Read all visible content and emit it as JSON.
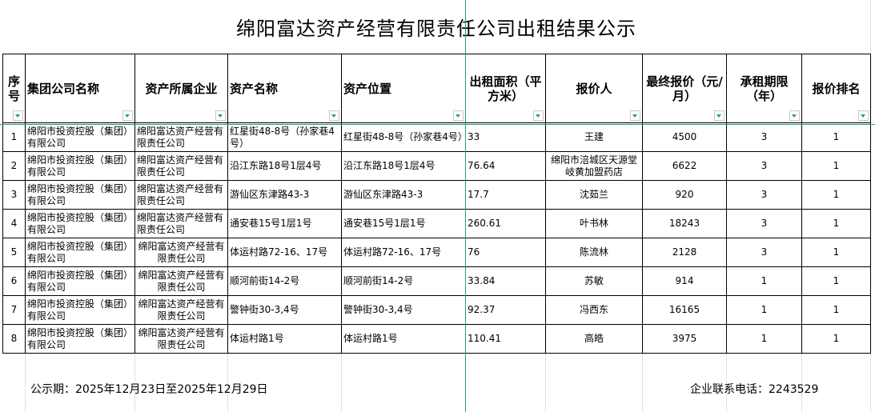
{
  "title": "绵阳富达资产经营有限责任公司出租结果公示",
  "columns": [
    "序号",
    "集团公司名称",
    "资产所属企业",
    "资产名称",
    "资产位置",
    "出租面积（平方米）",
    "报价人",
    "最终报价（元/月）",
    "承租期限（年）",
    "报价排名"
  ],
  "rows": [
    {
      "no": "1",
      "group": "绵阳市投资控股（集团）有限公司",
      "owner": "绵阳富达资产经营有限责任公司",
      "asset": "红星街48-8号（孙家巷4号）",
      "location": "红星街48-8号（孙家巷4号）",
      "area": "33",
      "bidder": "王建",
      "price": "4500",
      "term": "3",
      "rank": "1"
    },
    {
      "no": "2",
      "group": "绵阳市投资控股（集团）有限公司",
      "owner": "绵阳富达资产经营有限责任公司",
      "asset": "沿江东路18号1层4号",
      "location": "沿江东路18号1层4号",
      "area": "76.64",
      "bidder": "绵阳市涪城区天源堂岐黄加盟药店",
      "price": "6622",
      "term": "3",
      "rank": "1"
    },
    {
      "no": "3",
      "group": "绵阳市投资控股（集团）有限公司",
      "owner": "绵阳富达资产经营有限责任公司",
      "asset": "游仙区东津路43-3",
      "location": "游仙区东津路43-3",
      "area": "17.7",
      "bidder": "沈茹兰",
      "price": "920",
      "term": "3",
      "rank": "1"
    },
    {
      "no": "4",
      "group": "绵阳市投资控股（集团）有限公司",
      "owner": "绵阳富达资产经营有限责任公司",
      "asset": "通安巷15号1层1号",
      "location": "通安巷15号1层1号",
      "area": "260.61",
      "bidder": "叶书林",
      "price": "18243",
      "term": "3",
      "rank": "1"
    },
    {
      "no": "5",
      "group": "绵阳市投资控股（集团）有限公司",
      "owner": "绵阳富达资产经营有限责任公司",
      "asset": "体运村路72-16、17号",
      "location": "体运村路72-16、17号",
      "area": "76",
      "bidder": "陈流林",
      "price": "2128",
      "term": "3",
      "rank": "1"
    },
    {
      "no": "6",
      "group": "绵阳市投资控股（集团）有限公司",
      "owner": "绵阳富达资产经营有限责任公司",
      "asset": "顺河前街14-2号",
      "location": "顺河前街14-2号",
      "area": "33.84",
      "bidder": "苏敏",
      "price": "914",
      "term": "1",
      "rank": "1"
    },
    {
      "no": "7",
      "group": "绵阳市投资控股（集团）有限公司",
      "owner": "绵阳富达资产经营有限责任公司",
      "asset": "警钟街30-3,4号",
      "location": "警钟街30-3,4号",
      "area": "92.37",
      "bidder": "冯西东",
      "price": "16165",
      "term": "1",
      "rank": "1"
    },
    {
      "no": "8",
      "group": "绵阳市投资控股（集团）有限公司",
      "owner": "绵阳富达资产经营有限责任公司",
      "asset": "体运村路1号",
      "location": "体运村路1号",
      "area": "110.41",
      "bidder": "高皓",
      "price": "3975",
      "term": "1",
      "rank": "1"
    }
  ],
  "footer": {
    "period": "公示期：2025年12月23日至2025年12月29日",
    "contact": "企业联系电话：2243529"
  },
  "colors": {
    "freeze_line": "#21a366",
    "filter_arrow": "#21a366"
  }
}
